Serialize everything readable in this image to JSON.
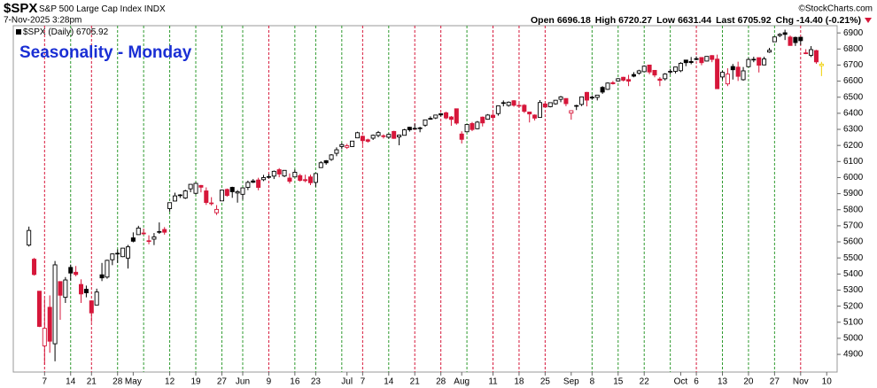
{
  "chart_data": {
    "type": "candlestick",
    "symbol": "$SPX",
    "name": "S&P 500 Large Cap Index",
    "exchange": "INDX",
    "timestamp": "7-Nov-2025 3:28pm",
    "credit": "©StockCharts.com",
    "quote": {
      "labels": [
        "Open",
        "High",
        "Low",
        "Last",
        "Chg"
      ],
      "change": "-14.40 (-0.21%)"
    },
    "legend": "$SPX (Daily)",
    "annotation": "Seasonality - Monday",
    "up_color": "#000000",
    "down_color": "#d6173a",
    "last_color": "#f0d000",
    "ylim": [
      4790,
      6945
    ],
    "yticks": [
      4900,
      5000,
      5100,
      5200,
      5300,
      5400,
      5500,
      5600,
      5700,
      5800,
      5900,
      6000,
      6100,
      6200,
      6300,
      6400,
      6500,
      6600,
      6700,
      6800,
      6900
    ],
    "xlim": [
      -3,
      155
    ],
    "xticks": [
      {
        "value": 3,
        "label": "7"
      },
      {
        "value": 8,
        "label": "14"
      },
      {
        "value": 12,
        "label": "21"
      },
      {
        "value": 17,
        "label": "28"
      },
      {
        "value": 20,
        "label": "May"
      },
      {
        "value": 27,
        "label": "12"
      },
      {
        "value": 32,
        "label": "19"
      },
      {
        "value": 37,
        "label": "27"
      },
      {
        "value": 41,
        "label": "Jun"
      },
      {
        "value": 46,
        "label": "9"
      },
      {
        "value": 51,
        "label": "16"
      },
      {
        "value": 55,
        "label": "23"
      },
      {
        "value": 61,
        "label": "Jul"
      },
      {
        "value": 64,
        "label": "7"
      },
      {
        "value": 69,
        "label": "14"
      },
      {
        "value": 74,
        "label": "21"
      },
      {
        "value": 79,
        "label": "28"
      },
      {
        "value": 83,
        "label": "Aug"
      },
      {
        "value": 89,
        "label": "11"
      },
      {
        "value": 94,
        "label": "18"
      },
      {
        "value": 99,
        "label": "25"
      },
      {
        "value": 104,
        "label": "Sep"
      },
      {
        "value": 108,
        "label": "8"
      },
      {
        "value": 113,
        "label": "15"
      },
      {
        "value": 118,
        "label": "22"
      },
      {
        "value": 125,
        "label": "Oct"
      },
      {
        "value": 128,
        "label": "6"
      },
      {
        "value": 133,
        "label": "13"
      },
      {
        "value": 138,
        "label": "20"
      },
      {
        "value": 143,
        "label": "27"
      },
      {
        "value": 148,
        "label": "Nov"
      },
      {
        "value": 153,
        "label": "10"
      }
    ],
    "vlines": {
      "x": [
        3,
        8,
        12,
        17,
        22,
        27,
        32,
        37,
        41,
        46,
        51,
        55,
        60,
        64,
        69,
        74,
        79,
        84,
        89,
        94,
        99,
        108,
        113,
        118,
        123,
        128,
        133,
        138,
        143,
        148
      ],
      "colors": [
        "#d6173a",
        "#2e9a2e",
        "#d6173a",
        "#2e9a2e",
        "#2e9a2e",
        "#2e9a2e",
        "#2e9a2e",
        "#2e9a2e",
        "#2e9a2e",
        "#d6173a",
        "#2e9a2e",
        "#2e9a2e",
        "#2e9a2e",
        "#d6173a",
        "#2e9a2e",
        "#d6173a",
        "#d6173a",
        "#2e9a2e",
        "#d6173a",
        "#d6173a",
        "#d6173a",
        "#2e9a2e",
        "#2e9a2e",
        "#2e9a2e",
        "#2e9a2e",
        "#d6173a",
        "#2e9a2e",
        "#2e9a2e",
        "#2e9a2e",
        "#d6173a"
      ]
    },
    "open": [
      5580,
      5492,
      5293,
      4953,
      5193,
      4966,
      5353,
      5255,
      5441,
      5411,
      5335,
      5305,
      5233,
      5207,
      5395,
      5381,
      5489,
      5529,
      5508,
      5499,
      5625,
      5645,
      5655,
      5606,
      5617,
      5663,
      5677,
      5807,
      5854,
      5888,
      5873,
      5930,
      5902,
      5951,
      5917,
      5842,
      5781,
      5855,
      5926,
      5939,
      5904,
      5896,
      5939,
      5979,
      5985,
      5987,
      6005,
      6009,
      6049,
      6010,
      5997,
      6004,
      6012,
      5987,
      6004,
      5970,
      6062,
      6105,
      6113,
      6151,
      6193,
      6188,
      6193,
      6247,
      6257,
      6235,
      6245,
      6262,
      6255,
      6251,
      6287,
      6253,
      6263,
      6313,
      6305,
      6307,
      6326,
      6368,
      6371,
      6397,
      6403,
      6377,
      6428,
      6271,
      6285,
      6336,
      6304,
      6376,
      6363,
      6388,
      6398,
      6464,
      6449,
      6478,
      6445,
      6450,
      6408,
      6389,
      6375,
      6458,
      6441,
      6459,
      6487,
      6492,
      6401,
      6444,
      6455,
      6530,
      6500,
      6499,
      6561,
      6549,
      6590,
      6601,
      6624,
      6610,
      6641,
      6650,
      6659,
      6700,
      6667,
      6613,
      6615,
      6661,
      6661,
      6665,
      6731,
      6722,
      6735,
      6747,
      6725,
      6759,
      6737,
      6626,
      6583,
      6691,
      6687,
      6609,
      6690,
      6736,
      6746,
      6701,
      6781,
      6845,
      6884,
      6901,
      6874,
      6872,
      6873,
      6776,
      6761,
      6790,
      6696.18
    ],
    "high": [
      5695,
      5500,
      5293,
      5246,
      5267,
      5481,
      5353,
      5381,
      5459,
      5450,
      5367,
      5328,
      5233,
      5309,
      5469,
      5489,
      5528,
      5553,
      5562,
      5581,
      5659,
      5700,
      5683,
      5641,
      5655,
      5721,
      5692,
      5845,
      5906,
      5897,
      5924,
      5959,
      5969,
      5954,
      5939,
      5878,
      5829,
      5922,
      5932,
      5943,
      5922,
      5937,
      5981,
      5991,
      5999,
      6017,
      6022,
      6044,
      6059,
      6045,
      6026,
      6050,
      6023,
      6018,
      6018,
      6028,
      6102,
      6109,
      6146,
      6188,
      6215,
      6210,
      6227,
      6285,
      6262,
      6242,
      6268,
      6290,
      6269,
      6274,
      6291,
      6267,
      6303,
      6316,
      6336,
      6316,
      6359,
      6381,
      6390,
      6401,
      6410,
      6383,
      6428,
      6288,
      6330,
      6346,
      6352,
      6380,
      6395,
      6404,
      6446,
      6480,
      6474,
      6482,
      6459,
      6457,
      6408,
      6393,
      6482,
      6466,
      6468,
      6483,
      6508,
      6492,
      6417,
      6453,
      6502,
      6533,
      6511,
      6513,
      6569,
      6592,
      6601,
      6619,
      6627,
      6639,
      6656,
      6671,
      6698,
      6701,
      6669,
      6625,
      6650,
      6676,
      6689,
      6718,
      6731,
      6750,
      6754,
      6747,
      6755,
      6762,
      6765,
      6664,
      6680,
      6707,
      6721,
      6688,
      6745,
      6752,
      6746,
      6752,
      6807,
      6876,
      6899,
      6920,
      6884,
      6877,
      6876,
      6799,
      6818,
      6795,
      6720.27
    ],
    "low": [
      5571,
      5390,
      5070,
      4835,
      4910,
      4857,
      5115,
      5220,
      5359,
      5386,
      5220,
      5255,
      5101,
      5207,
      5356,
      5371,
      5455,
      5469,
      5505,
      5434,
      5597,
      5644,
      5644,
      5585,
      5580,
      5650,
      5645,
      5788,
      5852,
      5873,
      5867,
      5909,
      5895,
      5908,
      5830,
      5826,
      5767,
      5855,
      5881,
      5874,
      5844,
      5862,
      5922,
      5966,
      5921,
      5978,
      5994,
      5991,
      6002,
      6003,
      5963,
      6004,
      5975,
      5971,
      5953,
      5943,
      6060,
      6080,
      6104,
      6133,
      6177,
      6178,
      6190,
      6246,
      6202,
      6217,
      6234,
      6251,
      6243,
      6242,
      6241,
      6201,
      6262,
      6286,
      6303,
      6282,
      6316,
      6360,
      6364,
      6380,
      6363,
      6322,
      6329,
      6212,
      6285,
      6289,
      6300,
      6318,
      6360,
      6364,
      6385,
      6443,
      6441,
      6441,
      6434,
      6402,
      6343,
      6355,
      6375,
      6438,
      6437,
      6453,
      6469,
      6444,
      6360,
      6420,
      6445,
      6443,
      6484,
      6480,
      6521,
      6545,
      6579,
      6600,
      6598,
      6569,
      6624,
      6640,
      6658,
      6643,
      6624,
      6569,
      6604,
      6643,
      6648,
      6656,
      6693,
      6705,
      6730,
      6699,
      6723,
      6718,
      6551,
      6611,
      6569,
      6610,
      6601,
      6603,
      6688,
      6718,
      6654,
      6699,
      6776,
      6845,
      6874,
      6856,
      6822,
      6819,
      6825,
      6768,
      6750,
      6708,
      6631.44
    ],
    "close": [
      5671,
      5397,
      5074,
      5062,
      4982,
      5457,
      5268,
      5363,
      5406,
      5397,
      5276,
      5283,
      5158,
      5288,
      5376,
      5485,
      5525,
      5529,
      5561,
      5569,
      5604,
      5686,
      5650,
      5607,
      5631,
      5664,
      5660,
      5844,
      5886,
      5892,
      5917,
      5958,
      5964,
      5940,
      5845,
      5842,
      5802,
      5922,
      5889,
      5912,
      5912,
      5936,
      5970,
      5971,
      5939,
      6000,
      6006,
      6039,
      6022,
      6045,
      5977,
      6033,
      5983,
      5981,
      5968,
      6025,
      6092,
      6092,
      6141,
      6173,
      6205,
      6198,
      6227,
      6279,
      6230,
      6226,
      6263,
      6280,
      6260,
      6269,
      6244,
      6264,
      6297,
      6297,
      6306,
      6309,
      6359,
      6363,
      6389,
      6390,
      6371,
      6362,
      6339,
      6238,
      6330,
      6299,
      6345,
      6340,
      6389,
      6374,
      6446,
      6466,
      6469,
      6450,
      6449,
      6412,
      6396,
      6370,
      6467,
      6439,
      6466,
      6481,
      6502,
      6460,
      6416,
      6448,
      6502,
      6482,
      6495,
      6513,
      6532,
      6588,
      6584,
      6615,
      6606,
      6600,
      6631,
      6664,
      6693,
      6657,
      6638,
      6605,
      6644,
      6661,
      6688,
      6711,
      6715,
      6716,
      6740,
      6715,
      6754,
      6735,
      6553,
      6655,
      6644,
      6671,
      6630,
      6664,
      6735,
      6736,
      6699,
      6738,
      6792,
      6875,
      6891,
      6891,
      6822,
      6840,
      6852,
      6771,
      6796,
      6720,
      6705.92
    ]
  }
}
